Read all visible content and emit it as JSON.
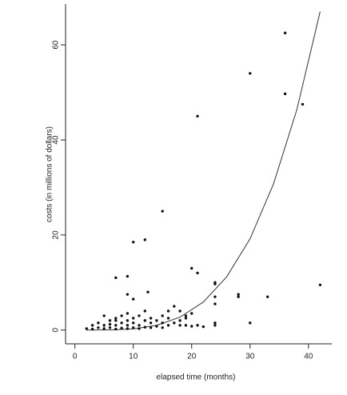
{
  "chart_data": {
    "type": "scatter",
    "x_label": "elapsed time (months)",
    "y_label": "costs (in millions of dollars)",
    "x": [
      2,
      3,
      3,
      4,
      4,
      5,
      5,
      5,
      6,
      6,
      6,
      7,
      7,
      7,
      7,
      8,
      8,
      8,
      9,
      9,
      9,
      9,
      10,
      10,
      10,
      11,
      11,
      11,
      12,
      12,
      12,
      13,
      13,
      13,
      14,
      14,
      15,
      15,
      15,
      16,
      16,
      17,
      18,
      18,
      19,
      19,
      20,
      21,
      22,
      36,
      30,
      21,
      36,
      39,
      15,
      10,
      12,
      20,
      21,
      24,
      24,
      7,
      9,
      9,
      10,
      12.5,
      42,
      33,
      28,
      28,
      24,
      24,
      30,
      24,
      24,
      17,
      19,
      20,
      18,
      16
    ],
    "values": [
      0.3,
      0.2,
      1,
      0.5,
      1.5,
      0.3,
      1,
      3,
      0.5,
      1.2,
      2,
      0.2,
      1,
      2,
      2.5,
      0.4,
      1.5,
      3,
      0.3,
      1,
      2,
      3.5,
      0.5,
      1.5,
      2.5,
      0.3,
      1,
      3,
      0.6,
      2,
      4,
      0.5,
      1.5,
      2.5,
      0.8,
      2,
      0.5,
      1.5,
      3,
      1,
      2.5,
      1.5,
      1,
      2,
      1,
      2.5,
      0.8,
      1,
      0.7,
      62.5,
      54,
      45,
      49.7,
      47.5,
      25,
      18.5,
      19,
      13,
      12,
      10,
      9.7,
      11,
      11.3,
      7.5,
      6.5,
      8,
      9.5,
      7,
      7.5,
      7,
      7,
      5.5,
      1.5,
      1.5,
      1,
      5,
      3,
      3.5,
      4,
      4
    ],
    "color": "#111111",
    "curve": {
      "x": [
        2,
        6,
        10,
        14,
        18,
        22,
        26,
        30,
        34,
        38,
        42
      ],
      "values": [
        0,
        0.02,
        0.24,
        0.99,
        2.7,
        5.9,
        11.2,
        19.2,
        30.7,
        46.3,
        67
      ],
      "color": "#333333"
    },
    "xlim": [
      -1.6,
      44
    ],
    "ylim": [
      -2.9,
      68.6
    ],
    "xticks": [
      0,
      10,
      20,
      30,
      40
    ],
    "yticks": [
      0,
      20,
      40,
      60
    ]
  }
}
